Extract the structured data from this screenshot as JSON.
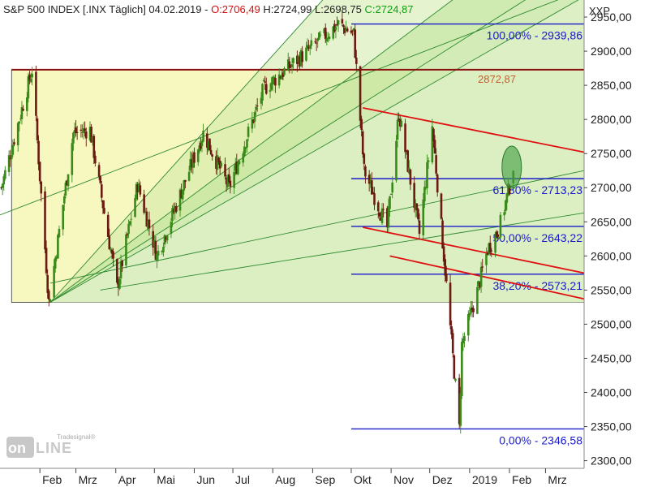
{
  "header": {
    "title": "S&P 500 INDEX [.INX  Täglich] 04.02.2019 - ",
    "open": "O:2706,49",
    "high": "H:2724,99",
    "low": "L:2698,75",
    "close": "C:2724,87"
  },
  "logo": {
    "brand_on": "on",
    "brand_line": "LINE",
    "tradesignal": "Tradesignal®"
  },
  "colors": {
    "fib_line": "#1a1acc",
    "peak_line": "#8a1010",
    "red_channel": "#e01010",
    "bull_candle": "#3a8a1a",
    "bear_candle": "#6a1a10",
    "fan_fill": "#a8d878",
    "zone_fill": "#f7f7c0"
  },
  "chart_data": {
    "type": "candlestick",
    "symbol": "S&P 500 INDEX",
    "ylabel": "XXP",
    "ylim": [
      2290,
      2975
    ],
    "y_ticks": [
      "2300,00",
      "2350,00",
      "2400,00",
      "2450,00",
      "2500,00",
      "2550,00",
      "2600,00",
      "2650,00",
      "2700,00",
      "2750,00",
      "2800,00",
      "2850,00",
      "2900,00",
      "2950,00"
    ],
    "x_ticks": [
      "Feb",
      "Mrz",
      "Apr",
      "Mai",
      "Jun",
      "Jul",
      "Aug",
      "Sep",
      "Okt",
      "Nov",
      "Dez",
      "2019",
      "Feb",
      "Mrz"
    ],
    "last": {
      "open": 2706.49,
      "high": 2724.99,
      "low": 2698.75,
      "close": 2724.87
    },
    "fibonacci": [
      {
        "label": "100,00% - 2939,86",
        "value": 2939.86
      },
      {
        "label": "61,80% - 2713,23",
        "value": 2713.23
      },
      {
        "label": "50,00% - 2643,22",
        "value": 2643.22
      },
      {
        "label": "38,20% - 2573,21",
        "value": 2573.21
      },
      {
        "label": "0,00% - 2346,58",
        "value": 2346.58
      }
    ],
    "peak_level": {
      "label": "2872,87",
      "value": 2872.87
    },
    "swing_points": [
      {
        "date": "2018-01-02",
        "value": 2700
      },
      {
        "date": "2018-01-26",
        "value": 2872.87
      },
      {
        "date": "2018-02-08",
        "value": 2532
      },
      {
        "date": "2018-02-27",
        "value": 2780
      },
      {
        "date": "2018-03-12",
        "value": 2785
      },
      {
        "date": "2018-04-02",
        "value": 2553
      },
      {
        "date": "2018-04-18",
        "value": 2705
      },
      {
        "date": "2018-05-03",
        "value": 2600
      },
      {
        "date": "2018-06-08",
        "value": 2780
      },
      {
        "date": "2018-06-28",
        "value": 2700
      },
      {
        "date": "2018-07-25",
        "value": 2845
      },
      {
        "date": "2018-08-28",
        "value": 2900
      },
      {
        "date": "2018-09-21",
        "value": 2939.86
      },
      {
        "date": "2018-10-03",
        "value": 2925
      },
      {
        "date": "2018-10-11",
        "value": 2725
      },
      {
        "date": "2018-10-29",
        "value": 2641
      },
      {
        "date": "2018-11-07",
        "value": 2810
      },
      {
        "date": "2018-11-23",
        "value": 2632
      },
      {
        "date": "2018-12-03",
        "value": 2790
      },
      {
        "date": "2018-12-24",
        "value": 2346.58
      },
      {
        "date": "2018-12-26",
        "value": 2470
      },
      {
        "date": "2019-01-07",
        "value": 2548
      },
      {
        "date": "2019-01-15",
        "value": 2610
      },
      {
        "date": "2019-01-24",
        "value": 2640
      },
      {
        "date": "2019-02-04",
        "value": 2724.87
      }
    ],
    "annotations": [
      "highlight circle at last candle"
    ]
  }
}
